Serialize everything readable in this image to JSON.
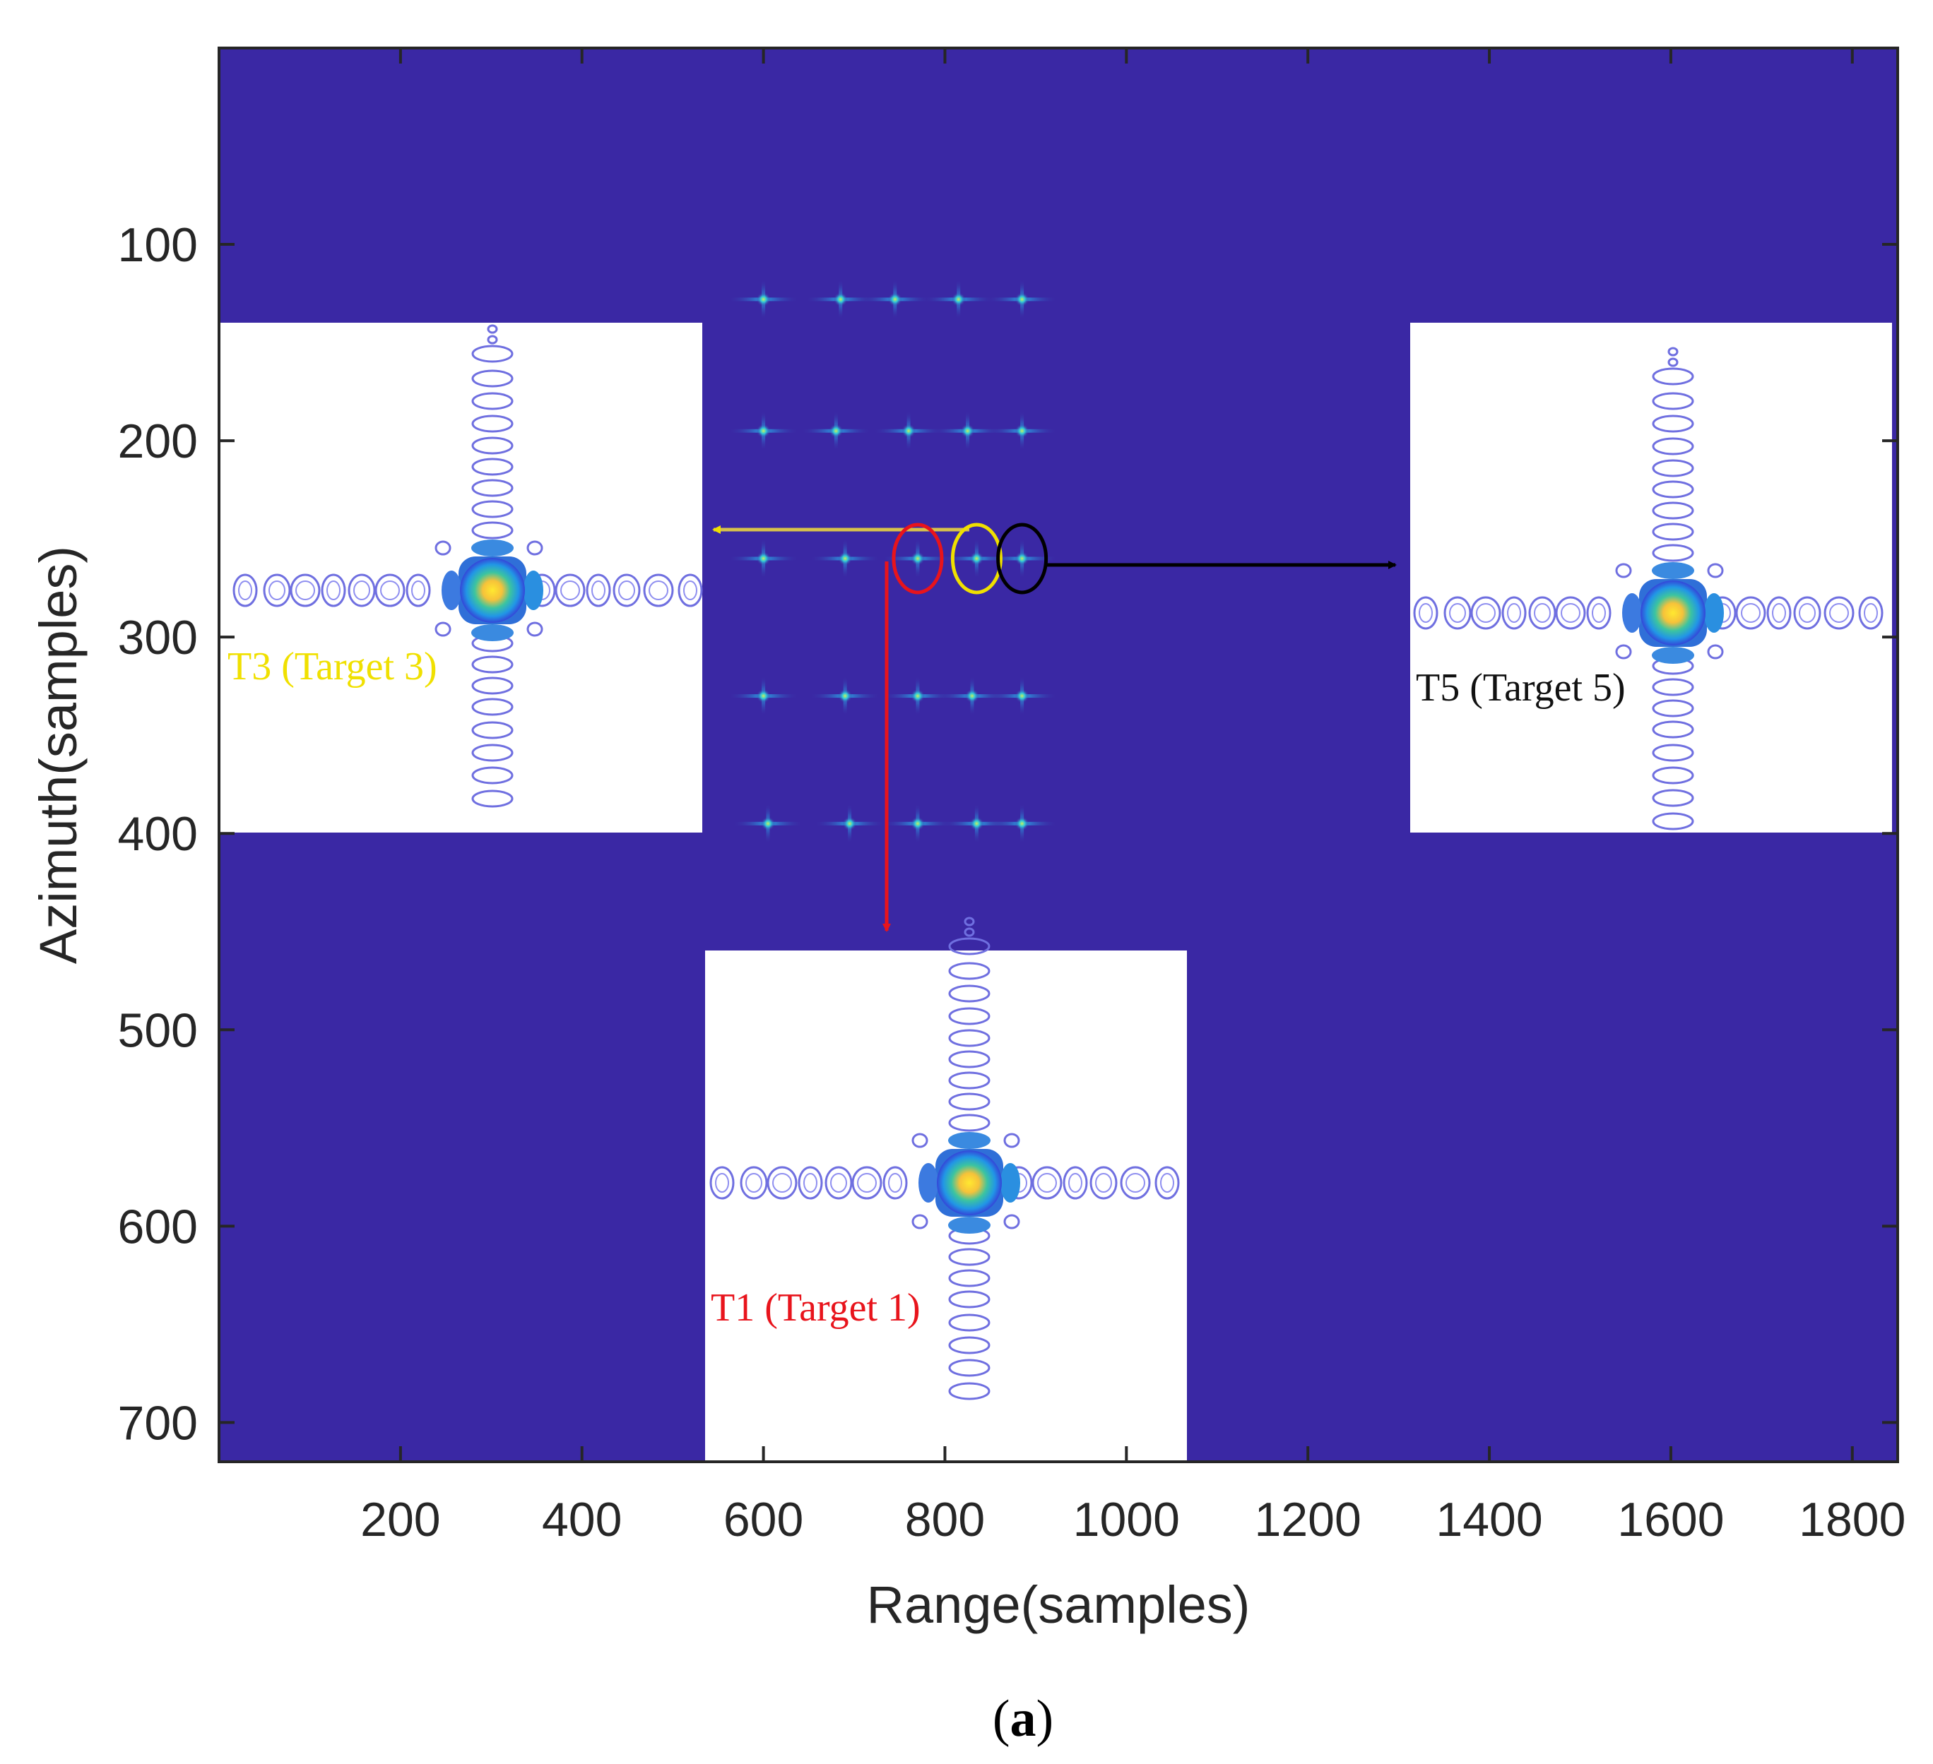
{
  "chart_data": {
    "type": "heatmap",
    "title": "",
    "xlabel": "Range(samples)",
    "ylabel": "Azimuth(samples)",
    "xlim": [
      0,
      1850
    ],
    "ylim": [
      0,
      720
    ],
    "x_ticks": [
      200,
      400,
      600,
      800,
      1000,
      1200,
      1400,
      1600,
      1800
    ],
    "y_ticks": [
      100,
      200,
      300,
      400,
      500,
      600,
      700
    ],
    "x_tick_labels": [
      "200",
      "400",
      "600",
      "800",
      "1000",
      "1200",
      "1400",
      "1600",
      "1800"
    ],
    "y_tick_labels": [
      "100",
      "200",
      "300",
      "400",
      "500",
      "600",
      "700"
    ],
    "background_color": "#3a28a4",
    "point_targets": [
      {
        "range": 600,
        "azimuth": 128
      },
      {
        "range": 685,
        "azimuth": 128
      },
      {
        "range": 745,
        "azimuth": 128
      },
      {
        "range": 815,
        "azimuth": 128
      },
      {
        "range": 885,
        "azimuth": 128
      },
      {
        "range": 600,
        "azimuth": 195
      },
      {
        "range": 680,
        "azimuth": 195
      },
      {
        "range": 760,
        "azimuth": 195
      },
      {
        "range": 825,
        "azimuth": 195
      },
      {
        "range": 885,
        "azimuth": 195
      },
      {
        "range": 600,
        "azimuth": 260
      },
      {
        "range": 690,
        "azimuth": 260
      },
      {
        "range": 770,
        "azimuth": 260
      },
      {
        "range": 835,
        "azimuth": 260
      },
      {
        "range": 885,
        "azimuth": 260
      },
      {
        "range": 600,
        "azimuth": 330
      },
      {
        "range": 690,
        "azimuth": 330
      },
      {
        "range": 770,
        "azimuth": 330
      },
      {
        "range": 830,
        "azimuth": 330
      },
      {
        "range": 885,
        "azimuth": 330
      },
      {
        "range": 605,
        "azimuth": 395
      },
      {
        "range": 695,
        "azimuth": 395
      },
      {
        "range": 770,
        "azimuth": 395
      },
      {
        "range": 835,
        "azimuth": 395
      },
      {
        "range": 885,
        "azimuth": 395
      }
    ],
    "highlighted_targets": [
      {
        "id": "T1",
        "label": "T1 (Target 1)",
        "color": "#e8141c",
        "range": 770,
        "azimuth": 260
      },
      {
        "id": "T3",
        "label": "T3 (Target 3)",
        "color": "#f0e000",
        "range": 835,
        "azimuth": 260
      },
      {
        "id": "T5",
        "label": "T5 (Target 5)",
        "color": "#000000",
        "range": 885,
        "azimuth": 260
      }
    ],
    "insets": [
      {
        "target": "T3",
        "placement": "left",
        "label_color": "#f0e000"
      },
      {
        "target": "T5",
        "placement": "right",
        "label_color": "#111111"
      },
      {
        "target": "T1",
        "placement": "bottom",
        "label_color": "#e8141c"
      }
    ]
  },
  "caption": {
    "open": "(",
    "letter": "a",
    "close": ")"
  }
}
